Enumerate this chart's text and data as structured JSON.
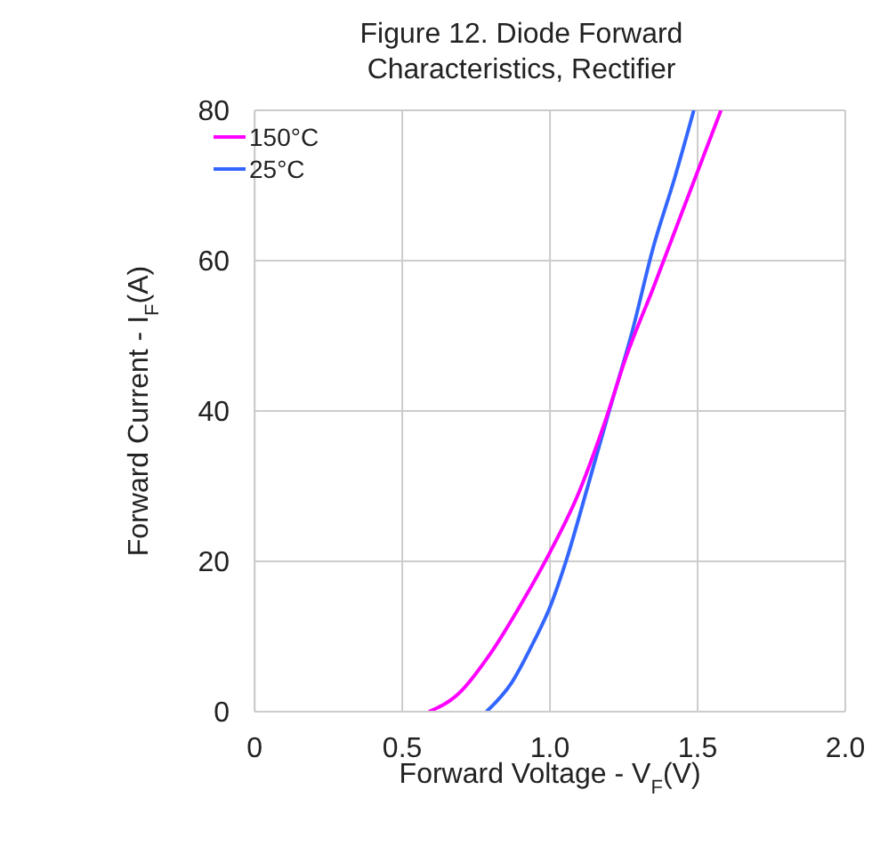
{
  "chart_data": {
    "type": "line",
    "title": "Figure 12. Diode Forward Characteristics, Rectifier",
    "xlabel": "Forward Voltage - V$_{F}$(V)",
    "ylabel": "Forward Current - I$_{F}$(A)",
    "xlim": [
      0,
      2
    ],
    "xticks": [
      0,
      0.5,
      {
        "value": 1,
        "label": "1.0"
      },
      1.5,
      {
        "value": 2,
        "label": "2.0"
      }
    ],
    "ylim": [
      0,
      80
    ],
    "yticks": [
      0,
      20,
      40,
      60,
      80
    ],
    "grid": true,
    "legend": "top left",
    "marker": "none",
    "line_style": "solid",
    "series": [
      {
        "name": "25°C",
        "color": "#3366ff",
        "x": [
          0.785,
          0.871,
          0.945,
          1.0,
          1.055,
          1.129,
          1.202,
          1.276,
          1.35,
          1.423,
          1.487
        ],
        "values": [
          0,
          3.9,
          9.3,
          13.9,
          20.1,
          30.1,
          40.2,
          50.2,
          61.8,
          71.1,
          80
        ]
      },
      {
        "name": "150°C",
        "color": "#ff00ff",
        "x": [
          0.59,
          0.688,
          0.798,
          0.908,
          1.0,
          1.092,
          1.184,
          1.258,
          1.35,
          1.441,
          1.515,
          1.579
        ],
        "values": [
          0,
          2.3,
          7.7,
          14.7,
          21.2,
          28.6,
          38.3,
          47.2,
          56.4,
          65.8,
          73.4,
          80
        ]
      }
    ]
  }
}
